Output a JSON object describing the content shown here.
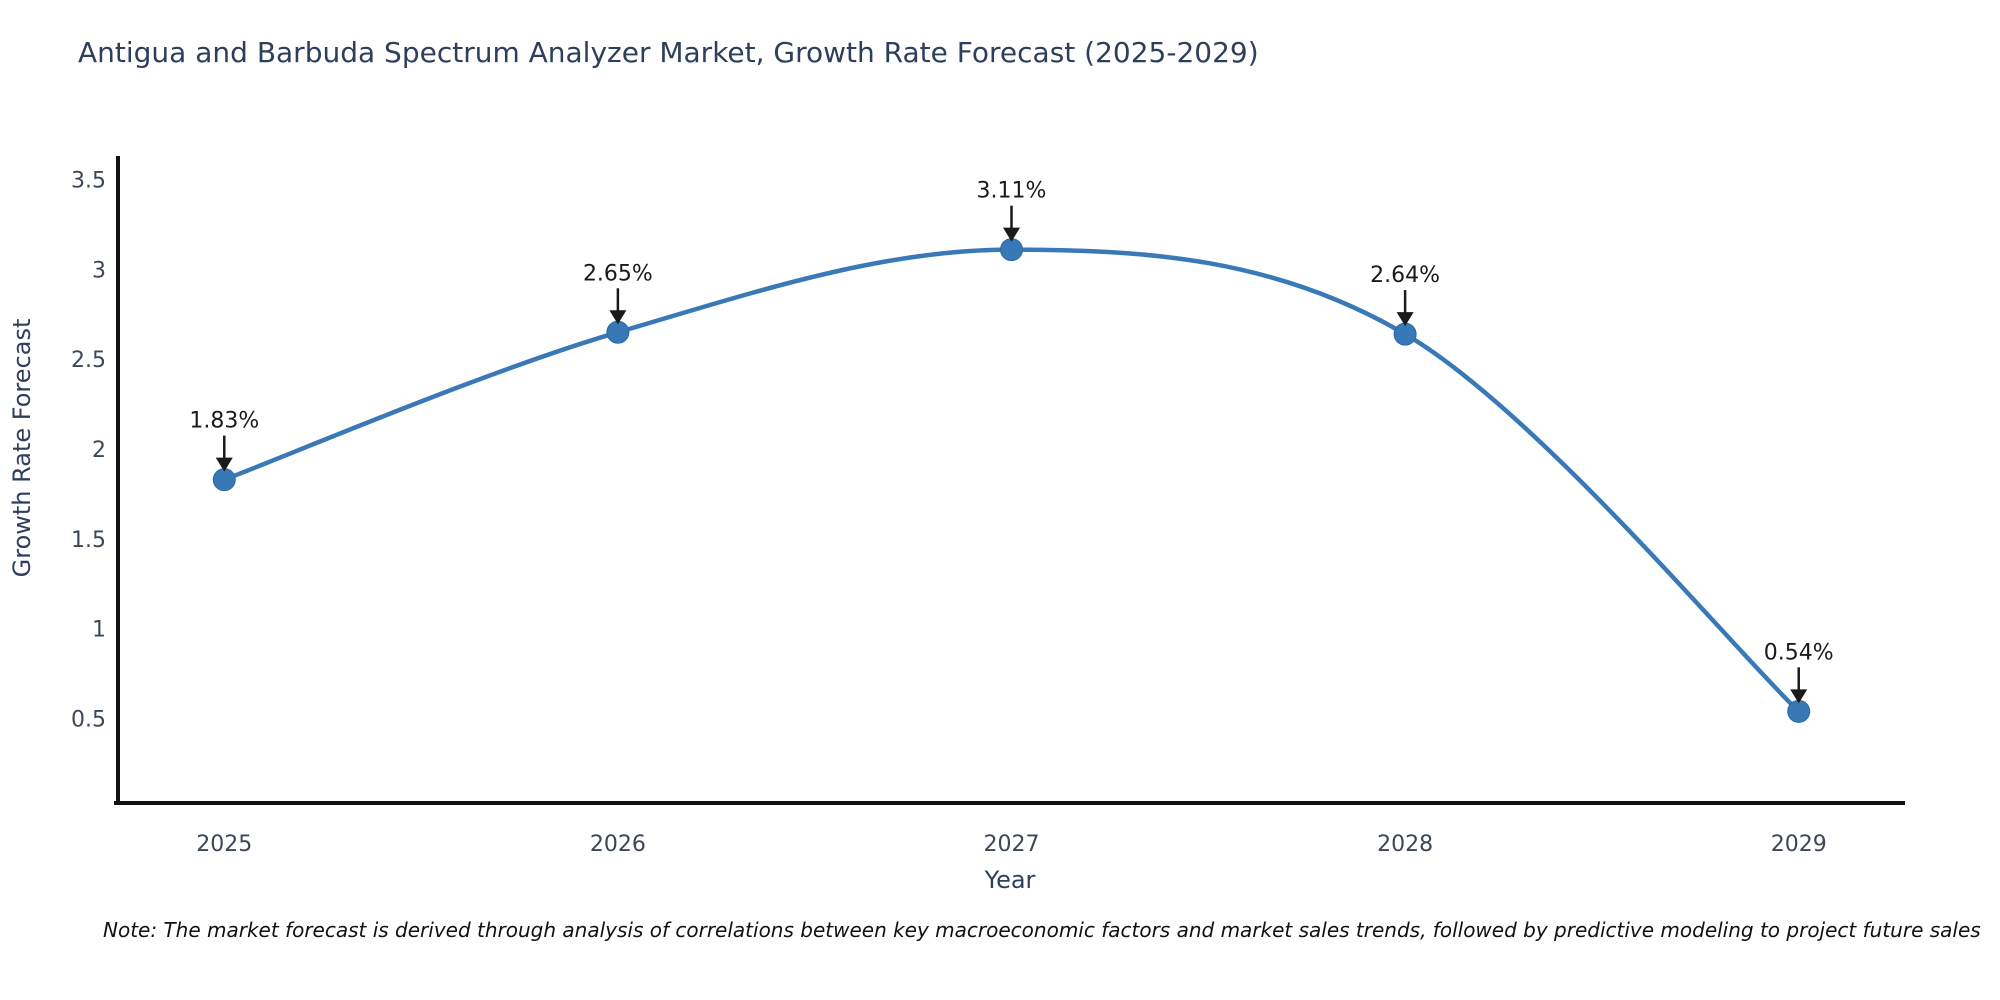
{
  "title": "Antigua and Barbuda Spectrum Analyzer Market, Growth Rate Forecast (2025-2029)",
  "note": "Note: The market forecast is derived through analysis of correlations between key macroeconomic factors and market sales trends, followed by predictive modeling to project future sales",
  "chart_data": {
    "type": "line",
    "title": "Antigua and Barbuda Spectrum Analyzer Market, Growth Rate Forecast (2025-2029)",
    "xlabel": "Year",
    "ylabel": "Growth Rate Forecast",
    "x": [
      2025,
      2026,
      2027,
      2028,
      2029
    ],
    "values": [
      1.83,
      2.65,
      3.11,
      2.64,
      0.54
    ],
    "point_labels": [
      "1.83%",
      "2.65%",
      "3.11%",
      "2.64%",
      "0.54%"
    ],
    "yticks": [
      0.5,
      1,
      1.5,
      2,
      2.5,
      3,
      3.5
    ],
    "xlim": [
      2024.73,
      2029.27
    ],
    "ylim": [
      0.03,
      3.62
    ],
    "grid": false,
    "legend": null,
    "line_color": "#3a79b8",
    "marker_color": "#3779b7",
    "marker_edge_color": "#2d689f",
    "annotation_color": "#1a1a1a",
    "axis_color": "#111111"
  }
}
